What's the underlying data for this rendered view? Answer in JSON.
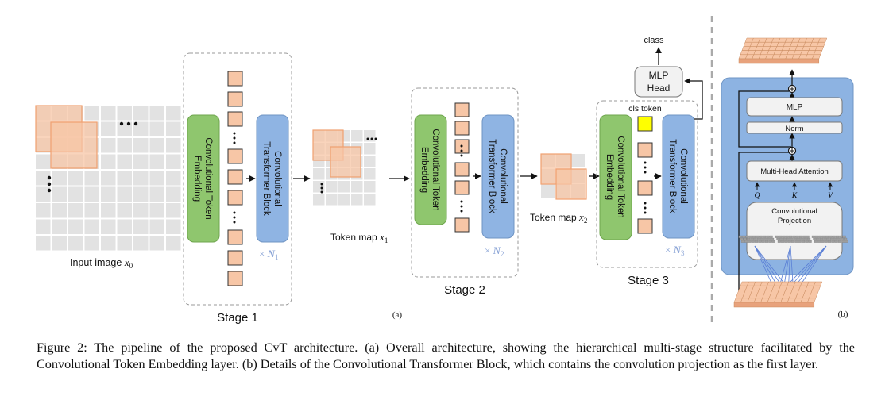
{
  "figure": {
    "input_label": "Input image ",
    "input_var": "x",
    "input_sub": "0",
    "stages": [
      {
        "label": "Stage 1",
        "embed_label_1": "Convolutional Token",
        "embed_label_2": "Embedding",
        "block_label_1": "Convolutional",
        "block_label_2": "Transformer Block",
        "repeat_prefix": "× ",
        "repeat_var": "N",
        "repeat_sub": "1"
      },
      {
        "label": "Stage 2",
        "embed_label_1": "Convolutional Token",
        "embed_label_2": "Embedding",
        "block_label_1": "Convolutional",
        "block_label_2": "Transformer Block",
        "repeat_prefix": "× ",
        "repeat_var": "N",
        "repeat_sub": "2"
      },
      {
        "label": "Stage 3",
        "embed_label_1": "Convolutional Token",
        "embed_label_2": "Embedding",
        "block_label_1": "Convolutional",
        "block_label_2": "Transformer Block",
        "repeat_prefix": "× ",
        "repeat_var": "N",
        "repeat_sub": "3"
      }
    ],
    "token_map_1": {
      "label": "Token map ",
      "var": "x",
      "sub": "1"
    },
    "token_map_2": {
      "label": "Token map ",
      "var": "x",
      "sub": "2"
    },
    "cls_token_label": "cls token",
    "mlp_head_line1": "MLP",
    "mlp_head_line2": "Head",
    "class_label": "class",
    "part_a_label": "(a)",
    "part_b_label": "(b)",
    "detail": {
      "mlp_label": "MLP",
      "norm_label": "Norm",
      "mha_label": "Multi-Head Attention",
      "q_label": "Q",
      "k_label": "K",
      "v_label": "V",
      "conv_proj_line1": "Convolutional",
      "conv_proj_line2": "Projection"
    },
    "colors": {
      "embedding_green": "#8fc66e",
      "block_blue": "#8fb4e3",
      "token_orange": "#f7c6a6",
      "cls_yellow": "#ffff00",
      "detail_panel_blue": "#8db3e2"
    }
  },
  "caption": "Figure 2: The pipeline of the proposed CvT architecture. (a) Overall architecture, showing the hierarchical multi-stage structure facilitated by the Convolutional Token Embedding layer. (b) Details of the Convolutional Transformer Block, which contains the convolution projection as the first layer."
}
